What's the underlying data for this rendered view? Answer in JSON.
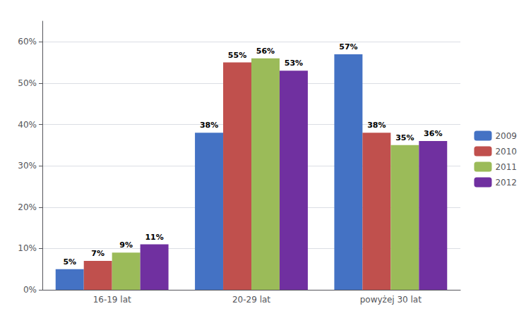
{
  "chart_data": {
    "type": "bar",
    "categories": [
      "16-19 lat",
      "20-29 lat",
      "powyżej 30 lat"
    ],
    "series": [
      {
        "name": "2009",
        "color": "#4472C4",
        "values": [
          5,
          38,
          57
        ],
        "value_labels": [
          "5%",
          "38%",
          "57%"
        ]
      },
      {
        "name": "2010",
        "color": "#C0504D",
        "values": [
          7,
          55,
          38
        ],
        "value_labels": [
          "7%",
          "55%",
          "38%"
        ]
      },
      {
        "name": "2011",
        "color": "#9BBB59",
        "values": [
          9,
          56,
          35
        ],
        "value_labels": [
          "9%",
          "56%",
          "35%"
        ]
      },
      {
        "name": "2012",
        "color": "#7030A0",
        "values": [
          11,
          53,
          36
        ],
        "value_labels": [
          "11%",
          "53%",
          "36%"
        ]
      }
    ],
    "ylim": [
      0,
      65
    ],
    "yticks": [
      {
        "value": 0,
        "label": "0%"
      },
      {
        "value": 10,
        "label": "10%"
      },
      {
        "value": 20,
        "label": "20%"
      },
      {
        "value": 30,
        "label": "30%"
      },
      {
        "value": 40,
        "label": "40%"
      },
      {
        "value": 50,
        "label": "50%"
      },
      {
        "value": 60,
        "label": "60%"
      }
    ],
    "grid": true,
    "legend": "right",
    "data_labels": true
  }
}
